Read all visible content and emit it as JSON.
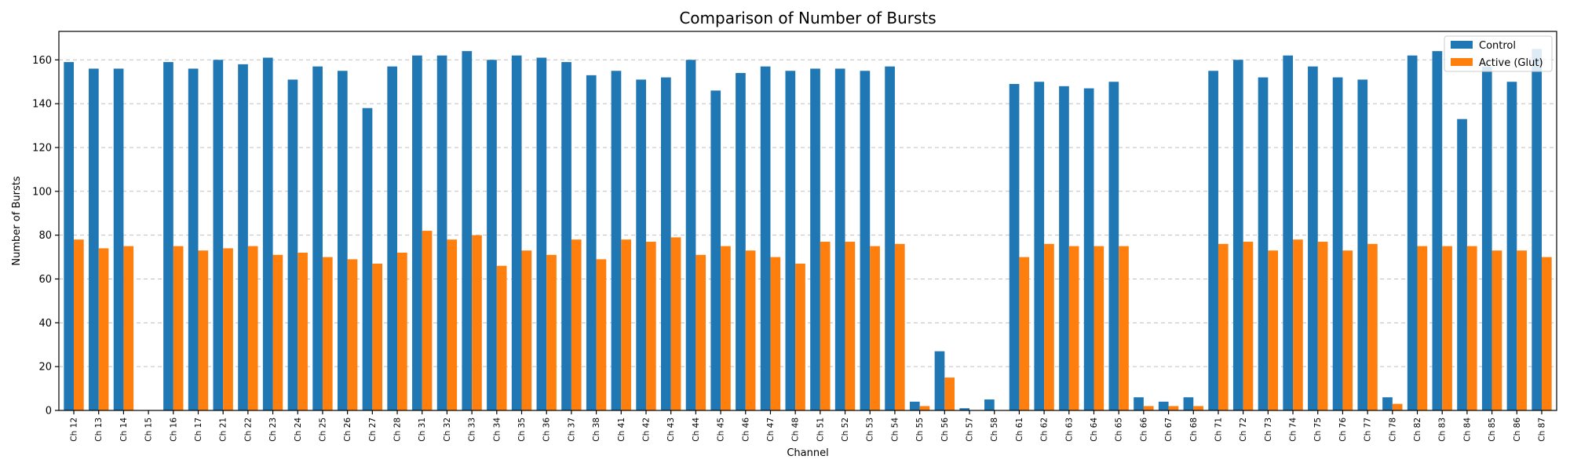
{
  "chart_data": {
    "type": "bar",
    "title": "Comparison of Number of Bursts",
    "xlabel": "Channel",
    "ylabel": "Number of Bursts",
    "ylim": [
      0,
      173
    ],
    "yticks": [
      0,
      20,
      40,
      60,
      80,
      100,
      120,
      140,
      160
    ],
    "grid": "y-dashed",
    "legend_position": "top-right",
    "categories": [
      "Ch 12",
      "Ch 13",
      "Ch 14",
      "Ch 15",
      "Ch 16",
      "Ch 17",
      "Ch 21",
      "Ch 22",
      "Ch 23",
      "Ch 24",
      "Ch 25",
      "Ch 26",
      "Ch 27",
      "Ch 28",
      "Ch 31",
      "Ch 32",
      "Ch 33",
      "Ch 34",
      "Ch 35",
      "Ch 36",
      "Ch 37",
      "Ch 38",
      "Ch 41",
      "Ch 42",
      "Ch 43",
      "Ch 44",
      "Ch 45",
      "Ch 46",
      "Ch 47",
      "Ch 48",
      "Ch 51",
      "Ch 52",
      "Ch 53",
      "Ch 54",
      "Ch 55",
      "Ch 56",
      "Ch 57",
      "Ch 58",
      "Ch 61",
      "Ch 62",
      "Ch 63",
      "Ch 64",
      "Ch 65",
      "Ch 66",
      "Ch 67",
      "Ch 68",
      "Ch 71",
      "Ch 72",
      "Ch 73",
      "Ch 74",
      "Ch 75",
      "Ch 76",
      "Ch 77",
      "Ch 78",
      "Ch 82",
      "Ch 83",
      "Ch 84",
      "Ch 85",
      "Ch 86",
      "Ch 87"
    ],
    "series": [
      {
        "name": "Control",
        "color": "#1f77b4",
        "values": [
          159,
          156,
          156,
          0,
          159,
          156,
          160,
          158,
          161,
          151,
          157,
          155,
          138,
          157,
          162,
          162,
          164,
          160,
          162,
          161,
          159,
          153,
          155,
          151,
          152,
          160,
          146,
          154,
          157,
          155,
          156,
          156,
          155,
          157,
          4,
          27,
          1,
          5,
          149,
          150,
          148,
          147,
          150,
          6,
          4,
          6,
          155,
          160,
          152,
          162,
          157,
          152,
          151,
          6,
          162,
          164,
          133,
          157,
          150,
          165
        ]
      },
      {
        "name": "Active (Glut)",
        "color": "#ff7f0e",
        "values": [
          78,
          74,
          75,
          0,
          75,
          73,
          74,
          75,
          71,
          72,
          70,
          69,
          67,
          72,
          82,
          78,
          80,
          66,
          73,
          71,
          78,
          69,
          78,
          77,
          79,
          71,
          75,
          73,
          70,
          67,
          77,
          77,
          75,
          76,
          2,
          15,
          0,
          0,
          70,
          76,
          75,
          75,
          75,
          2,
          2,
          2,
          76,
          77,
          73,
          78,
          77,
          73,
          76,
          3,
          75,
          75,
          75,
          73,
          73,
          70
        ]
      }
    ]
  }
}
